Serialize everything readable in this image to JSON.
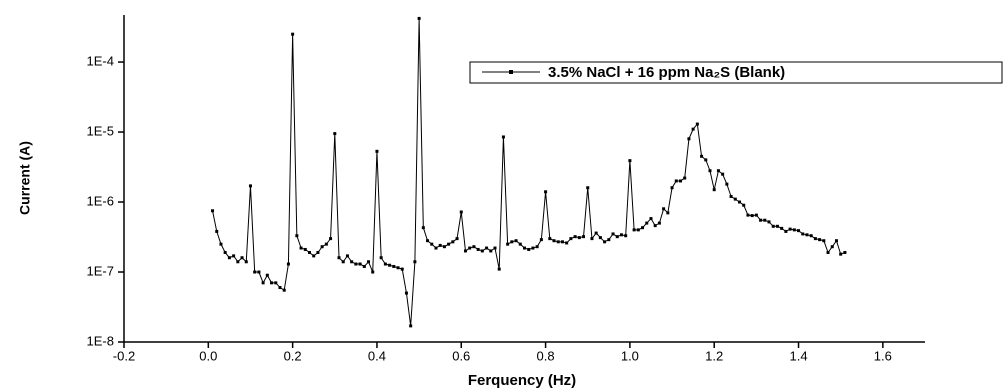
{
  "chart_data": {
    "type": "line",
    "x_label": "Ferquency (Hz)",
    "y_label": "Current (A)",
    "yscale": "log",
    "grid": false,
    "legend_position": "top-right",
    "xlim": [
      -0.2,
      1.7
    ],
    "ylim": [
      1e-08,
      0.00047
    ],
    "xticks": [
      -0.2,
      {
        "value": 0,
        "label": "0.0"
      },
      0.2,
      0.4,
      0.6,
      0.8,
      {
        "value": 1,
        "label": "1.0"
      },
      1.2,
      1.4,
      1.6
    ],
    "yticks": [
      {
        "value": 1e-08,
        "label": "1E-8"
      },
      {
        "value": 1e-07,
        "label": "1E-7"
      },
      {
        "value": 1e-06,
        "label": "1E-6"
      },
      {
        "value": 1e-05,
        "label": "1E-5"
      },
      {
        "value": 0.0001,
        "label": "1E-4"
      }
    ],
    "x": [
      0.01,
      0.02,
      0.03,
      0.04,
      0.05,
      0.06,
      0.07,
      0.08,
      0.09,
      0.1,
      0.11,
      0.12,
      0.13,
      0.14,
      0.15,
      0.16,
      0.17,
      0.18,
      0.19,
      0.2,
      0.21,
      0.22,
      0.23,
      0.24,
      0.25,
      0.26,
      0.27,
      0.28,
      0.29,
      0.3,
      0.31,
      0.32,
      0.33,
      0.34,
      0.35,
      0.36,
      0.37,
      0.38,
      0.39,
      0.4,
      0.41,
      0.42,
      0.43,
      0.44,
      0.45,
      0.46,
      0.47,
      0.48,
      0.49,
      0.5,
      0.51,
      0.52,
      0.53,
      0.54,
      0.55,
      0.56,
      0.57,
      0.58,
      0.59,
      0.6,
      0.61,
      0.62,
      0.63,
      0.64,
      0.65,
      0.66,
      0.67,
      0.68,
      0.69,
      0.7,
      0.71,
      0.72,
      0.73,
      0.74,
      0.75,
      0.76,
      0.77,
      0.78,
      0.79,
      0.8,
      0.81,
      0.82,
      0.83,
      0.84,
      0.85,
      0.86,
      0.87,
      0.88,
      0.89,
      0.9,
      0.91,
      0.92,
      0.93,
      0.94,
      0.95,
      0.96,
      0.97,
      0.98,
      0.99,
      1.0,
      1.01,
      1.02,
      1.03,
      1.04,
      1.05,
      1.06,
      1.07,
      1.08,
      1.09,
      1.1,
      1.11,
      1.12,
      1.13,
      1.14,
      1.15,
      1.16,
      1.17,
      1.18,
      1.19,
      1.2,
      1.21,
      1.22,
      1.23,
      1.24,
      1.25,
      1.26,
      1.27,
      1.28,
      1.29,
      1.3,
      1.31,
      1.32,
      1.33,
      1.34,
      1.35,
      1.36,
      1.37,
      1.38,
      1.39,
      1.4,
      1.41,
      1.42,
      1.43,
      1.44,
      1.45,
      1.46,
      1.47,
      1.48,
      1.49,
      1.5,
      1.51
    ],
    "series": [
      {
        "name": "3.5% NaCl + 16 ppm Na₂S (Blank)",
        "color": "#000000",
        "values": [
          7.5e-07,
          3.8e-07,
          2.5e-07,
          1.9e-07,
          1.6e-07,
          1.7e-07,
          1.4e-07,
          1.6e-07,
          1.4e-07,
          1.7e-06,
          1e-07,
          1e-07,
          7e-08,
          9e-08,
          7e-08,
          7e-08,
          6e-08,
          5.5e-08,
          1.3e-07,
          0.00025,
          3.3e-07,
          2.2e-07,
          2.1e-07,
          1.9e-07,
          1.7e-07,
          1.9e-07,
          2.3e-07,
          2.5e-07,
          3e-07,
          9.5e-06,
          1.6e-07,
          1.4e-07,
          1.7e-07,
          1.4e-07,
          1.3e-07,
          1.3e-07,
          1.2e-07,
          1.4e-07,
          1e-07,
          5.3e-06,
          1.6e-07,
          1.3e-07,
          1.25e-07,
          1.2e-07,
          1.15e-07,
          1.1e-07,
          5e-08,
          1.7e-08,
          1.4e-07,
          0.00042,
          4.3e-07,
          2.8e-07,
          2.5e-07,
          2.2e-07,
          2.4e-07,
          2.3e-07,
          2.5e-07,
          2.7e-07,
          3e-07,
          7.2e-07,
          2e-07,
          2.2e-07,
          2.3e-07,
          2.1e-07,
          2e-07,
          2.2e-07,
          2e-07,
          2.2e-07,
          1.1e-07,
          8.5e-06,
          2.5e-07,
          2.7e-07,
          2.8e-07,
          2.5e-07,
          2.2e-07,
          2.1e-07,
          2.2e-07,
          2.3e-07,
          2.9e-07,
          1.4e-06,
          3e-07,
          2.8e-07,
          2.7e-07,
          2.7e-07,
          2.6e-07,
          3e-07,
          3.2e-07,
          3.1e-07,
          3.2e-07,
          1.6e-06,
          3e-07,
          3.6e-07,
          3.1e-07,
          2.7e-07,
          2.9e-07,
          3.5e-07,
          3.2e-07,
          3.4e-07,
          3.3e-07,
          3.9e-06,
          4e-07,
          4e-07,
          4.3e-07,
          5e-07,
          5.8e-07,
          4.6e-07,
          5e-07,
          8e-07,
          7e-07,
          1.6e-06,
          2e-06,
          2e-06,
          2.2e-06,
          8e-06,
          1.1e-05,
          1.3e-05,
          4.5e-06,
          4e-06,
          2.8e-06,
          1.5e-06,
          2.8e-06,
          2.5e-06,
          1.8e-06,
          1.2e-06,
          1.1e-06,
          1e-06,
          9e-07,
          6.5e-07,
          6.4e-07,
          6.5e-07,
          5.5e-07,
          5.5e-07,
          5.2e-07,
          4.5e-07,
          4.5e-07,
          4.2e-07,
          3.8e-07,
          4.1e-07,
          4e-07,
          3.9e-07,
          3.5e-07,
          3.4e-07,
          3.3e-07,
          3e-07,
          2.9e-07,
          2.8e-07,
          1.9e-07,
          2.3e-07,
          2.8e-07,
          1.8e-07,
          1.9e-07
        ]
      }
    ]
  }
}
